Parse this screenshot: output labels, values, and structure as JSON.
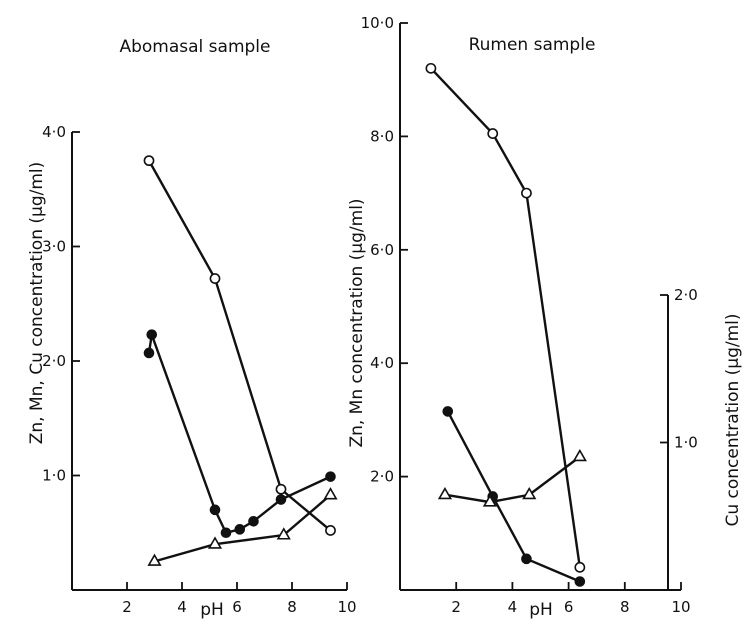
{
  "chart_data": [
    {
      "type": "line",
      "title": "Abomasal sample",
      "xlabel": "pH",
      "ylabel": "Zn, Mn, Cu concentration (µg/ml)",
      "xlim": [
        0,
        10
      ],
      "ylim": [
        0,
        4.0
      ],
      "xticks": [
        "2",
        "4",
        "6",
        "8",
        "10"
      ],
      "yticks": [
        "1·0",
        "2·0",
        "3·0",
        "4·0"
      ],
      "series": [
        {
          "marker": "open-circle",
          "x": [
            2.8,
            5.2,
            7.6,
            9.4
          ],
          "y": [
            3.75,
            2.72,
            0.88,
            0.52
          ]
        },
        {
          "marker": "filled-circle",
          "x": [
            2.8,
            2.9,
            5.2,
            5.6,
            6.1,
            6.6,
            7.6,
            9.4
          ],
          "y": [
            2.07,
            2.23,
            0.7,
            0.5,
            0.53,
            0.6,
            0.79,
            0.99
          ]
        },
        {
          "marker": "open-triangle",
          "x": [
            3.0,
            5.2,
            7.7,
            9.4
          ],
          "y": [
            0.25,
            0.4,
            0.48,
            0.83
          ]
        }
      ]
    },
    {
      "type": "line",
      "title": "Rumen sample",
      "xlabel": "pH",
      "ylabel": "Zn, Mn concentration (µg/ml)",
      "y2label": "Cu concentration (µg/ml)",
      "xlim": [
        0,
        10
      ],
      "ylim": [
        0,
        10.0
      ],
      "y2lim": [
        0,
        2.0
      ],
      "xticks": [
        "2",
        "4",
        "6",
        "8",
        "10"
      ],
      "yticks": [
        "2·0",
        "4·0",
        "6·0",
        "8·0",
        "10·0"
      ],
      "y2ticks": [
        "1·0",
        "2·0"
      ],
      "series": [
        {
          "marker": "open-circle",
          "x": [
            1.1,
            3.3,
            4.5,
            6.4
          ],
          "y": [
            9.2,
            8.05,
            7.0,
            0.4
          ]
        },
        {
          "marker": "filled-circle",
          "x": [
            1.7,
            3.3,
            4.5,
            6.4
          ],
          "y": [
            3.15,
            1.65,
            0.55,
            0.15
          ]
        },
        {
          "marker": "open-triangle",
          "x": [
            1.6,
            3.2,
            4.6,
            6.4
          ],
          "y": [
            1.68,
            1.55,
            1.68,
            2.35
          ]
        }
      ]
    }
  ]
}
